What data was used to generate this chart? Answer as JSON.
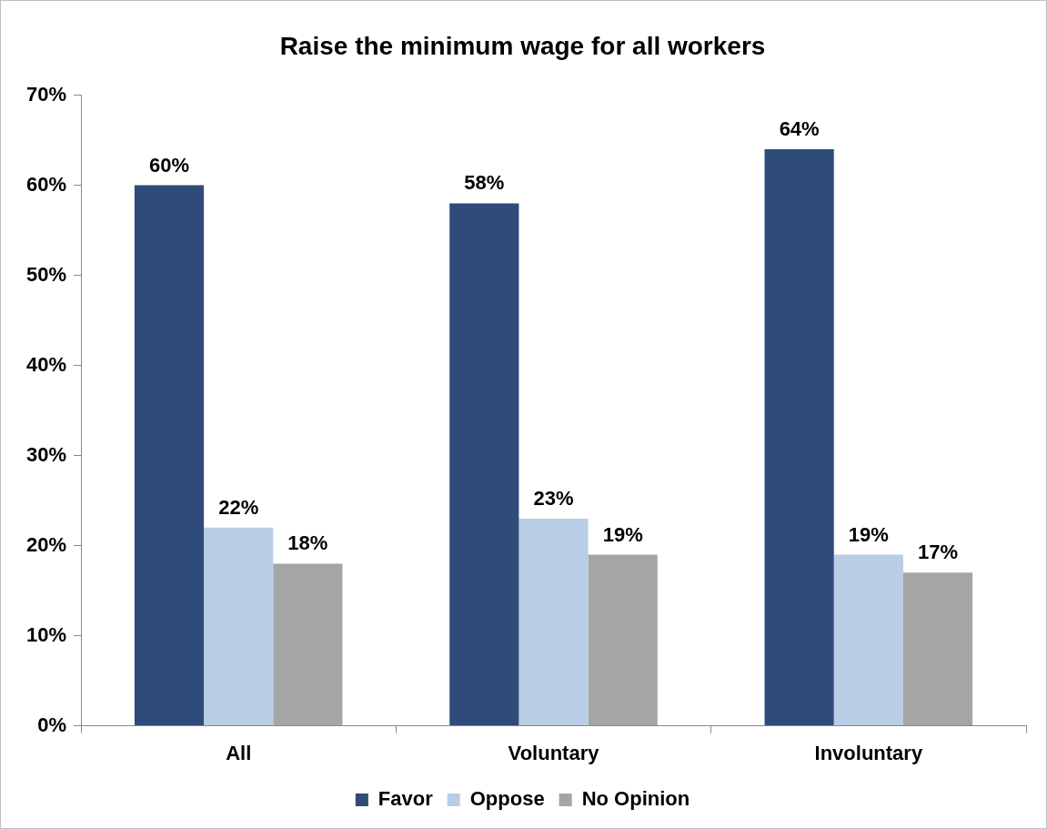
{
  "chart_data": {
    "type": "bar",
    "title": "Raise the minimum wage for all workers",
    "categories": [
      "All",
      "Voluntary",
      "Involuntary"
    ],
    "series": [
      {
        "name": "Favor",
        "color": "#2f4b7a",
        "values": [
          60,
          58,
          64
        ],
        "value_labels": [
          "60%",
          "58%",
          "64%"
        ]
      },
      {
        "name": "Oppose",
        "color": "#b9cde5",
        "values": [
          22,
          23,
          19
        ],
        "value_labels": [
          "22%",
          "23%",
          "19%"
        ]
      },
      {
        "name": "No Opinion",
        "color": "#a5a5a5",
        "values": [
          18,
          19,
          17
        ],
        "value_labels": [
          "18%",
          "19%",
          "17%"
        ]
      }
    ],
    "ylim": [
      0,
      70
    ],
    "yticks": [
      {
        "value": 0,
        "label": "0%"
      },
      {
        "value": 10,
        "label": "10%"
      },
      {
        "value": 20,
        "label": "20%"
      },
      {
        "value": 30,
        "label": "30%"
      },
      {
        "value": 40,
        "label": "40%"
      },
      {
        "value": 50,
        "label": "50%"
      },
      {
        "value": 60,
        "label": "60%"
      },
      {
        "value": 70,
        "label": "70%"
      }
    ],
    "grid": false,
    "legend": "bottom"
  }
}
